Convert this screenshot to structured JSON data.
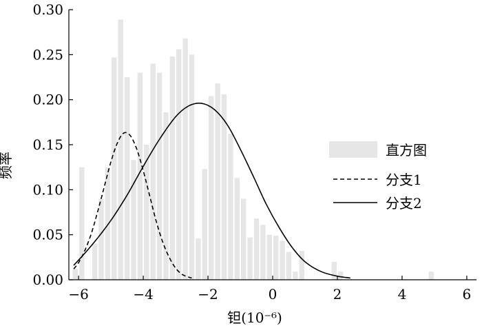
{
  "chart_data": {
    "type": "bar",
    "xlabel": "钽(10⁻⁶)",
    "ylabel": "频率",
    "xlim": [
      -6.3,
      6.3
    ],
    "ylim": [
      0,
      0.3
    ],
    "x_ticks": [
      -6,
      -4,
      -2,
      0,
      2,
      4,
      6
    ],
    "x_tick_labels": [
      "−6",
      "−4",
      "−2",
      "0",
      "2",
      "4",
      "6"
    ],
    "y_ticks": [
      0,
      0.05,
      0.1,
      0.15,
      0.2,
      0.25,
      0.3
    ],
    "y_tick_labels": [
      "0.00",
      "0.05",
      "0.10",
      "0.15",
      "0.20",
      "0.25",
      "0.30"
    ],
    "grid": false,
    "legend": {
      "position": "right",
      "entries": [
        {
          "label": "直方图",
          "style": "bar",
          "color": "#e6e6e6"
        },
        {
          "label": "分支1",
          "style": "dashed",
          "color": "#000000"
        },
        {
          "label": "分支2",
          "style": "solid",
          "color": "#000000"
        }
      ]
    },
    "histogram": {
      "name": "直方图",
      "color": "#e6e6e6",
      "bin_width": 0.2,
      "bins": [
        {
          "x": -6.1,
          "y": 0.012
        },
        {
          "x": -5.9,
          "y": 0.125
        },
        {
          "x": -5.5,
          "y": 0.04
        },
        {
          "x": -5.3,
          "y": 0.09
        },
        {
          "x": -5.1,
          "y": 0.125
        },
        {
          "x": -4.9,
          "y": 0.247
        },
        {
          "x": -4.7,
          "y": 0.289
        },
        {
          "x": -4.5,
          "y": 0.225
        },
        {
          "x": -4.3,
          "y": 0.133
        },
        {
          "x": -4.1,
          "y": 0.23
        },
        {
          "x": -3.9,
          "y": 0.15
        },
        {
          "x": -3.7,
          "y": 0.24
        },
        {
          "x": -3.5,
          "y": 0.23
        },
        {
          "x": -3.3,
          "y": 0.186
        },
        {
          "x": -3.1,
          "y": 0.248
        },
        {
          "x": -2.9,
          "y": 0.256
        },
        {
          "x": -2.7,
          "y": 0.268
        },
        {
          "x": -2.5,
          "y": 0.25
        },
        {
          "x": -2.3,
          "y": 0.046
        },
        {
          "x": -2.1,
          "y": 0.123
        },
        {
          "x": -1.9,
          "y": 0.204
        },
        {
          "x": -1.7,
          "y": 0.218
        },
        {
          "x": -1.5,
          "y": 0.206
        },
        {
          "x": -1.3,
          "y": 0.162
        },
        {
          "x": -1.1,
          "y": 0.113
        },
        {
          "x": -0.9,
          "y": 0.09
        },
        {
          "x": -0.7,
          "y": 0.047
        },
        {
          "x": -0.5,
          "y": 0.068
        },
        {
          "x": -0.3,
          "y": 0.061
        },
        {
          "x": -0.1,
          "y": 0.05
        },
        {
          "x": 0.1,
          "y": 0.049
        },
        {
          "x": 0.3,
          "y": 0.043
        },
        {
          "x": 0.5,
          "y": 0.031
        },
        {
          "x": 0.7,
          "y": 0.009
        },
        {
          "x": 0.9,
          "y": 0.032
        },
        {
          "x": 1.9,
          "y": 0.02
        },
        {
          "x": 2.1,
          "y": 0.009
        },
        {
          "x": 4.9,
          "y": 0.009
        }
      ]
    },
    "series": [
      {
        "name": "分支1",
        "style": "dashed",
        "color": "#000000",
        "x": [
          -6.15,
          -6.0,
          -5.8,
          -5.6,
          -5.4,
          -5.2,
          -5.0,
          -4.8,
          -4.6,
          -4.4,
          -4.2,
          -4.0,
          -3.8,
          -3.6,
          -3.4,
          -3.2,
          -3.0,
          -2.8,
          -2.6,
          -2.5
        ],
        "y": [
          0.012,
          0.019,
          0.033,
          0.052,
          0.077,
          0.104,
          0.131,
          0.152,
          0.163,
          0.16,
          0.145,
          0.121,
          0.093,
          0.065,
          0.042,
          0.025,
          0.013,
          0.006,
          0.003,
          0.002
        ]
      },
      {
        "name": "分支2",
        "style": "solid",
        "color": "#000000",
        "x": [
          -6.15,
          -5.6,
          -5.0,
          -4.5,
          -4.0,
          -3.5,
          -3.0,
          -2.6,
          -2.2,
          -1.8,
          -1.4,
          -1.0,
          -0.6,
          -0.2,
          0.2,
          0.6,
          1.0,
          1.5,
          2.0,
          2.4
        ],
        "y": [
          0.016,
          0.038,
          0.066,
          0.094,
          0.126,
          0.156,
          0.181,
          0.193,
          0.196,
          0.189,
          0.172,
          0.145,
          0.115,
          0.084,
          0.058,
          0.036,
          0.02,
          0.009,
          0.004,
          0.002
        ]
      }
    ]
  }
}
